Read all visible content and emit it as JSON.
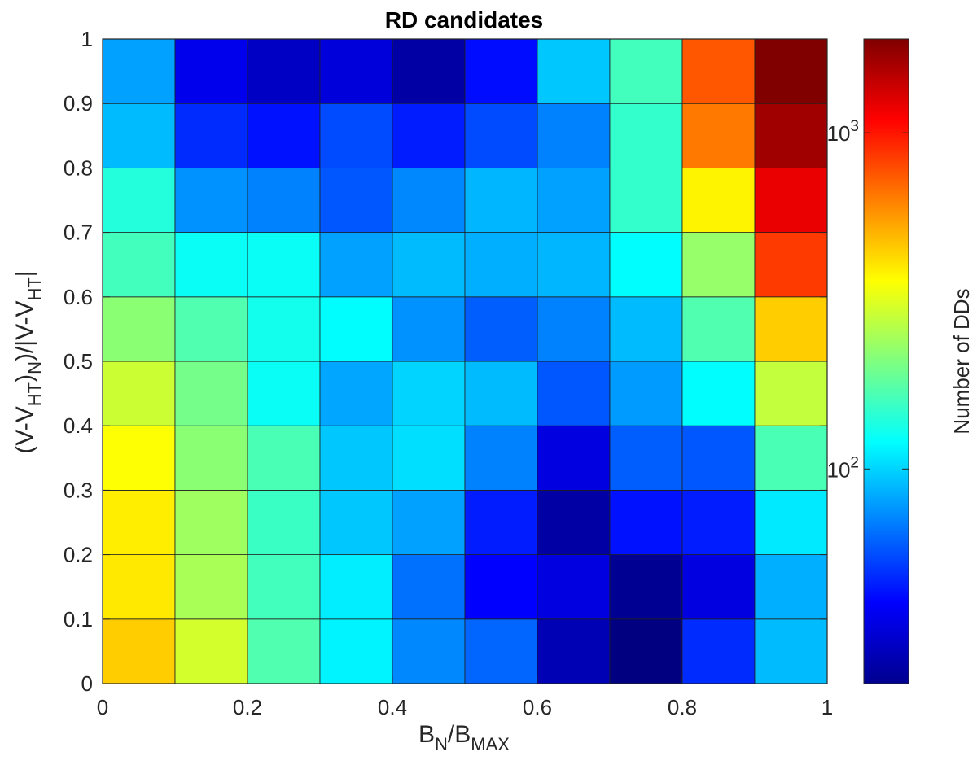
{
  "chart_data": {
    "type": "heatmap",
    "title": "RD candidates",
    "xlabel": {
      "base1": "B",
      "sub1": "N",
      "mid": "/B",
      "sub2": "MAX"
    },
    "ylabel": {
      "part1": "(V-V",
      "sub1": "HT",
      "part2": ")",
      "sub2": "N",
      "part3": ")/|V-V",
      "sub3": "HT",
      "part4": "|"
    },
    "xlim": [
      0,
      1
    ],
    "ylim": [
      0,
      1
    ],
    "x_bin_edges": [
      0,
      0.1,
      0.2,
      0.3,
      0.4,
      0.5,
      0.6,
      0.7,
      0.8,
      0.9,
      1
    ],
    "y_bin_edges": [
      0,
      0.1,
      0.2,
      0.3,
      0.4,
      0.5,
      0.6,
      0.7,
      0.8,
      0.9,
      1
    ],
    "x_ticks": [
      0,
      0.2,
      0.4,
      0.6,
      0.8,
      1
    ],
    "y_ticks": [
      0,
      0.1,
      0.2,
      0.3,
      0.4,
      0.5,
      0.6,
      0.7,
      0.8,
      0.9,
      1
    ],
    "x_tick_labels": [
      "0",
      "0.2",
      "0.4",
      "0.6",
      "0.8",
      "1"
    ],
    "y_tick_labels": [
      "0",
      "0.1",
      "0.2",
      "0.3",
      "0.4",
      "0.5",
      "0.6",
      "0.7",
      "0.8",
      "0.9",
      "1"
    ],
    "colorbar": {
      "label": "Number of DDs",
      "scale": "log",
      "colormap": "jet",
      "clim": [
        23,
        1900
      ],
      "ticks": [
        {
          "value": 100,
          "base": "10",
          "exp": "2"
        },
        {
          "value": 1000,
          "base": "10",
          "exp": "3"
        }
      ]
    },
    "rows_from_bottom": [
      [
        450,
        300,
        170,
        115,
        72,
        62,
        29,
        23,
        48,
        90
      ],
      [
        400,
        250,
        160,
        112,
        65,
        40,
        35,
        25,
        35,
        85
      ],
      [
        390,
        240,
        155,
        95,
        80,
        45,
        27,
        43,
        45,
        110
      ],
      [
        360,
        220,
        165,
        95,
        105,
        70,
        35,
        60,
        58,
        165
      ],
      [
        290,
        200,
        125,
        82,
        100,
        90,
        58,
        78,
        120,
        280
      ],
      [
        220,
        170,
        130,
        120,
        75,
        60,
        70,
        90,
        170,
        450
      ],
      [
        160,
        125,
        125,
        80,
        90,
        85,
        88,
        120,
        230,
        850
      ],
      [
        140,
        75,
        70,
        58,
        72,
        88,
        80,
        150,
        380,
        1200
      ],
      [
        90,
        48,
        43,
        55,
        45,
        55,
        70,
        150,
        650,
        1650
      ],
      [
        80,
        37,
        31,
        34,
        27,
        42,
        95,
        160,
        750,
        1900
      ]
    ]
  }
}
